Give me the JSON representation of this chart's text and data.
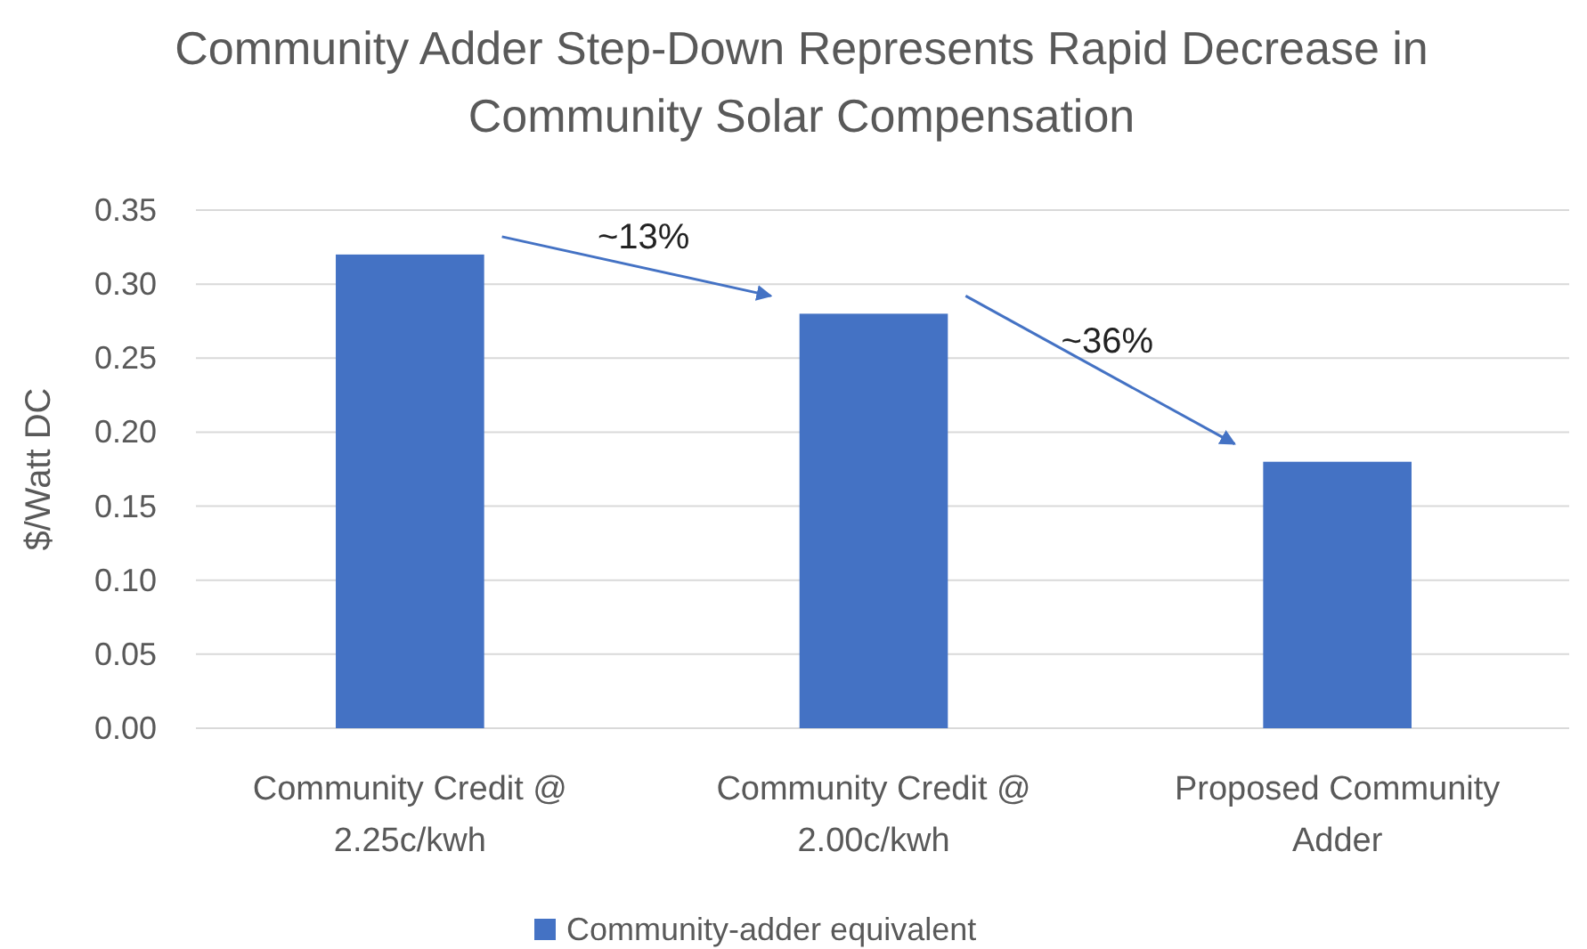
{
  "chart_data": {
    "type": "bar",
    "title": "Community Adder Step-Down Represents Rapid Decrease in Community Solar Compensation",
    "ylabel": "$/Watt DC",
    "categories": [
      "Community Credit @ 2.25c/kwh",
      "Community Credit @ 2.00c/kwh",
      "Proposed Community Adder"
    ],
    "series": [
      {
        "name": "Community-adder equivalent",
        "color": "#4472c4",
        "values": [
          0.32,
          0.28,
          0.18
        ]
      }
    ],
    "ylim": [
      0,
      0.35
    ],
    "yticks": [
      {
        "value": 0,
        "label": "0.00"
      },
      {
        "value": 0.05,
        "label": "0.05"
      },
      {
        "value": 0.1,
        "label": "0.10"
      },
      {
        "value": 0.15,
        "label": "0.15"
      },
      {
        "value": 0.2,
        "label": "0.20"
      },
      {
        "value": 0.25,
        "label": "0.25"
      },
      {
        "value": 0.3,
        "label": "0.30"
      },
      {
        "value": 0.35,
        "label": "0.35"
      }
    ],
    "grid": "y",
    "legend": "bottom",
    "annotations": [
      "~13%",
      "~36%"
    ]
  }
}
